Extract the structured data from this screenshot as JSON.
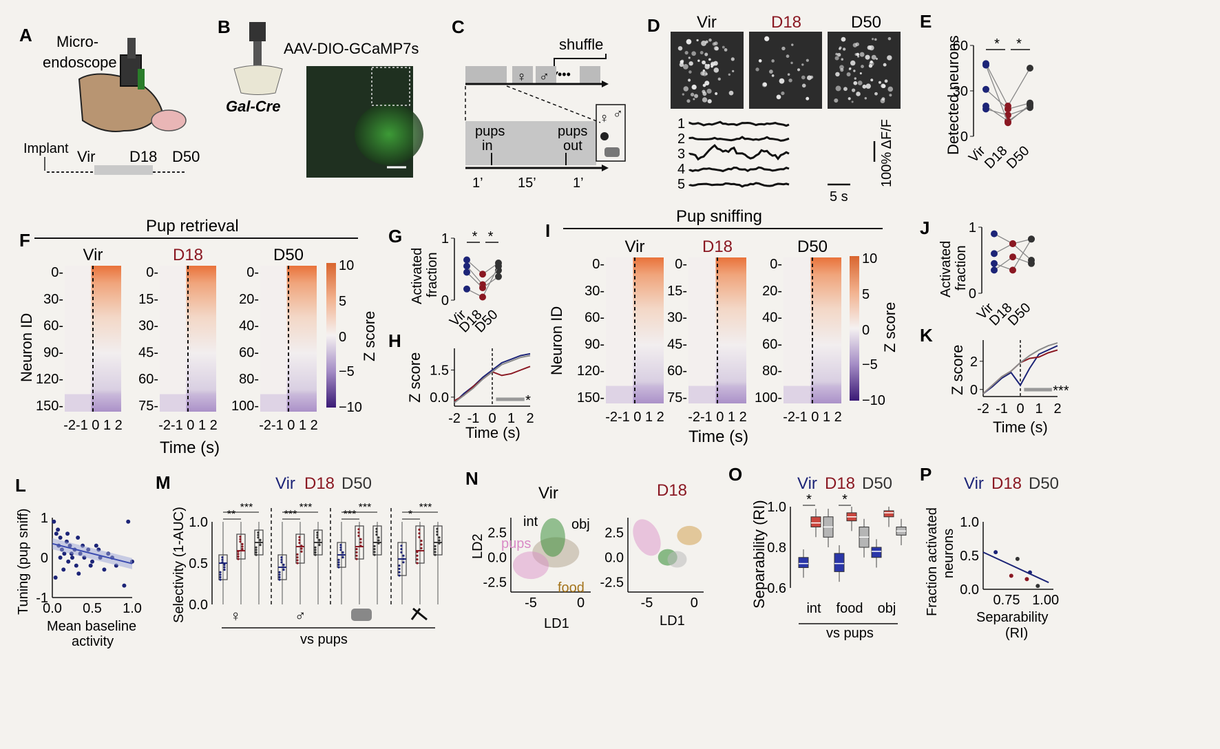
{
  "colors": {
    "vir": "#1c2477",
    "d18": "#8a1822",
    "d50": "#333333",
    "orange": "#e07a46",
    "purple": "#5b2f86",
    "green": "#2f8a2f",
    "pink": "#d98ac6",
    "food": "#d4a455",
    "paper": "#f4f2ee"
  },
  "panels": {
    "A": {
      "letter": "A",
      "label_micro": "Micro-",
      "label_endoscope": "endoscope",
      "implant": "Implant",
      "vir": "Vir",
      "d18": "D18",
      "d50": "D50"
    },
    "B": {
      "letter": "B",
      "virus": "AAV-DIO-GCaMP7s",
      "mouse_line": "Gal-Cre"
    },
    "C": {
      "letter": "C",
      "shuffle": "shuffle",
      "dots": "•••",
      "pups_in_1": "pups",
      "pups_in_2": "in",
      "pups_out_1": "pups",
      "pups_out_2": "out",
      "t1": "1’",
      "t2": "15’",
      "t3": "1’",
      "female": "♀",
      "male": "♂"
    },
    "D": {
      "letter": "D",
      "vir": "Vir",
      "d18": "D18",
      "d50": "D50",
      "trace_ids": [
        "1",
        "2",
        "3",
        "4",
        "5"
      ],
      "scale_y": "100% ΔF/F",
      "scale_x": "5 s"
    },
    "E": {
      "letter": "E",
      "ylabel": "Detected neurons",
      "yticks": [
        "60",
        "30",
        "0"
      ],
      "xticks": [
        "Vir",
        "D18",
        "D50"
      ],
      "sig": [
        "*",
        "*"
      ]
    },
    "F": {
      "letter": "F",
      "title": "Pup retrieval",
      "ylabel": "Neuron ID",
      "xlabel": "Time (s)",
      "cbar_label": "Z score",
      "cbar_ticks": [
        "10",
        "5",
        "0",
        "−5",
        "−10"
      ],
      "maps": [
        {
          "name": "Vir",
          "yticks": [
            "0-",
            "30-",
            "60-",
            "90-",
            "120-",
            "150-"
          ],
          "xticks": "-2-1 0 1 2"
        },
        {
          "name": "D18",
          "yticks": [
            "0-",
            "15-",
            "30-",
            "45-",
            "60-",
            "75-"
          ],
          "xticks": "-2-1 0 1 2"
        },
        {
          "name": "D50",
          "yticks": [
            "0-",
            "20-",
            "40-",
            "60-",
            "80-",
            "100-"
          ],
          "xticks": "-2-1 0 1 2"
        }
      ]
    },
    "G": {
      "letter": "G",
      "ylabel_1": "Activated",
      "ylabel_2": "fraction",
      "yticks": [
        "1",
        "0"
      ],
      "xticks": [
        "Vir",
        "D18",
        "D50"
      ],
      "sig": [
        "*",
        "*"
      ]
    },
    "H": {
      "letter": "H",
      "ylabel": "Z score",
      "xlabel": "Time (s)",
      "yticks": [
        "1.5",
        "0.0"
      ],
      "xticks": [
        "-2",
        "-1",
        "0",
        "1",
        "2"
      ],
      "sig": "*"
    },
    "I": {
      "letter": "I",
      "title": "Pup sniffing",
      "ylabel": "Neuron ID",
      "xlabel": "Time (s)",
      "cbar_label": "Z score",
      "cbar_ticks": [
        "10",
        "5",
        "0",
        "−5",
        "−10"
      ],
      "maps": [
        {
          "name": "Vir",
          "yticks": [
            "0-",
            "30-",
            "60-",
            "90-",
            "120-",
            "150-"
          ],
          "xticks": "-2-1 0 1 2"
        },
        {
          "name": "D18",
          "yticks": [
            "0-",
            "15-",
            "30-",
            "45-",
            "60-",
            "75-"
          ],
          "xticks": "-2-1 0 1 2"
        },
        {
          "name": "D50",
          "yticks": [
            "0-",
            "20-",
            "40-",
            "60-",
            "80-",
            "100-"
          ],
          "xticks": "-2-1 0 1 2"
        }
      ]
    },
    "J": {
      "letter": "J",
      "ylabel_1": "Activated",
      "ylabel_2": "fraction",
      "yticks": [
        "1",
        "0"
      ],
      "xticks": [
        "Vir",
        "D18",
        "D50"
      ]
    },
    "K": {
      "letter": "K",
      "ylabel": "Z score",
      "xlabel": "Time (s)",
      "yticks": [
        "2",
        "0"
      ],
      "xticks": [
        "-2",
        "-1",
        "0",
        "1",
        "2"
      ],
      "sig": "***"
    },
    "L": {
      "letter": "L",
      "ylabel": "Tuning (pup sniff)",
      "xlabel_1": "Mean baseline",
      "xlabel_2": "activity",
      "yticks": [
        "1",
        "0",
        "-1"
      ],
      "xticks": [
        "0.0",
        "0.5",
        "1.0"
      ]
    },
    "M": {
      "letter": "M",
      "ylabel": "Selectivity (1-AUC)",
      "xlabel": "vs pups",
      "yticks": [
        "1.0",
        "0.5",
        "0.0"
      ],
      "legend": [
        "Vir",
        "D18",
        "D50"
      ],
      "sig": [
        "**",
        "***",
        "***",
        "***",
        "***",
        "***",
        "*",
        "***"
      ],
      "icons": [
        "♀",
        "♂"
      ]
    },
    "N": {
      "letter": "N",
      "plots": [
        {
          "name": "Vir",
          "labels": [
            "int",
            "obj",
            "pups",
            "food"
          ]
        },
        {
          "name": "D18"
        }
      ],
      "xlabel": "LD1",
      "ylabel": "LD2",
      "yticks": [
        "2.5",
        "0.0",
        "-2.5"
      ],
      "xticks": [
        "-5",
        "0"
      ]
    },
    "O": {
      "letter": "O",
      "ylabel": "Separability (RI)",
      "legend": [
        "Vir",
        "D18",
        "D50"
      ],
      "yticks": [
        "1.0",
        "0.8",
        "0.6"
      ],
      "xticks": [
        "int",
        "food",
        "obj"
      ],
      "xlabel": "vs pups",
      "sig": [
        "*",
        "*"
      ]
    },
    "P": {
      "letter": "P",
      "legend": [
        "Vir",
        "D18",
        "D50"
      ],
      "ylabel_1": "Fraction activated",
      "ylabel_2": "neurons",
      "yticks": [
        "1.0",
        "0.5",
        "0.0"
      ],
      "xticks": [
        "0.75",
        "1.00"
      ],
      "xlabel_1": "Separability",
      "xlabel_2": "(RI)"
    }
  },
  "chart_data": [
    {
      "panel": "E",
      "type": "line",
      "categories": [
        "Vir",
        "D18",
        "D50"
      ],
      "ylabel": "Detected neurons",
      "ylim": [
        0,
        60
      ],
      "series": [
        {
          "values": [
            48,
            20,
            45
          ]
        },
        {
          "values": [
            31,
            18,
            22
          ]
        },
        {
          "values": [
            20,
            10,
            20
          ]
        },
        {
          "values": [
            18,
            14,
            19
          ]
        },
        {
          "values": [
            47,
            9,
            21
          ]
        }
      ]
    },
    {
      "panel": "G",
      "type": "line",
      "categories": [
        "Vir",
        "D18",
        "D50"
      ],
      "ylabel": "Activated fraction",
      "ylim": [
        0,
        1
      ],
      "series": [
        {
          "values": [
            0.65,
            0.42,
            0.6
          ]
        },
        {
          "values": [
            0.55,
            0.25,
            0.48
          ]
        },
        {
          "values": [
            0.45,
            0.2,
            0.38
          ]
        },
        {
          "values": [
            0.18,
            0.05,
            0.55
          ]
        }
      ]
    },
    {
      "panel": "H",
      "type": "line",
      "xlabel": "Time (s)",
      "ylabel": "Z score",
      "xlim": [
        -2,
        2
      ],
      "ylim": [
        -0.5,
        2.7
      ],
      "x": [
        -2,
        -1.5,
        -1,
        -0.5,
        0,
        0.5,
        1,
        1.5,
        2
      ],
      "series": [
        {
          "name": "Vir",
          "values": [
            -0.3,
            0.2,
            0.6,
            1.1,
            1.5,
            1.9,
            2.1,
            2.3,
            2.4
          ]
        },
        {
          "name": "D18",
          "values": [
            -0.2,
            0.1,
            0.6,
            1.0,
            1.4,
            1.2,
            1.3,
            1.5,
            1.7
          ]
        },
        {
          "name": "D50",
          "values": [
            -0.3,
            0.1,
            0.5,
            1.0,
            1.4,
            1.8,
            2.0,
            2.2,
            2.3
          ]
        }
      ]
    },
    {
      "panel": "J",
      "type": "line",
      "categories": [
        "Vir",
        "D18",
        "D50"
      ],
      "ylabel": "Activated fraction",
      "ylim": [
        0,
        1
      ],
      "series": [
        {
          "values": [
            0.9,
            0.75,
            0.82
          ]
        },
        {
          "values": [
            0.6,
            0.75,
            0.5
          ]
        },
        {
          "values": [
            0.45,
            0.35,
            0.82
          ]
        },
        {
          "values": [
            0.35,
            0.55,
            0.45
          ]
        }
      ]
    },
    {
      "panel": "K",
      "type": "line",
      "xlabel": "Time (s)",
      "ylabel": "Z score",
      "xlim": [
        -2,
        2
      ],
      "ylim": [
        -0.5,
        3.5
      ],
      "x": [
        -2,
        -1.5,
        -1,
        -0.5,
        0,
        0.5,
        1,
        1.5,
        2
      ],
      "series": [
        {
          "name": "Vir",
          "values": [
            -0.3,
            0.2,
            0.8,
            1.2,
            0.3,
            1.5,
            2.5,
            2.8,
            3.1
          ]
        },
        {
          "name": "D18",
          "values": [
            -0.3,
            0.3,
            0.9,
            1.3,
            1.9,
            2.2,
            2.3,
            2.6,
            2.8
          ]
        },
        {
          "name": "D50",
          "values": [
            -0.3,
            0.3,
            0.9,
            1.3,
            1.9,
            2.4,
            2.8,
            3.1,
            3.3
          ]
        }
      ]
    },
    {
      "panel": "L",
      "type": "scatter",
      "xlabel": "Mean baseline activity",
      "ylabel": "Tuning (pup sniff)",
      "xlim": [
        0,
        1
      ],
      "ylim": [
        -1,
        1
      ],
      "x": [
        0.02,
        0.05,
        0.08,
        0.1,
        0.12,
        0.15,
        0.18,
        0.2,
        0.22,
        0.25,
        0.28,
        0.3,
        0.32,
        0.35,
        0.4,
        0.45,
        0.5,
        0.55,
        0.6,
        0.65,
        0.7,
        0.8,
        0.9,
        0.95,
        1.0,
        0.04,
        0.07,
        0.1,
        0.14,
        0.19,
        0.24,
        0.33,
        0.38,
        0.48,
        0.58,
        0.75
      ],
      "y": [
        0.9,
        0.6,
        0.3,
        0.5,
        0.2,
        0.1,
        0.4,
        -0.1,
        0.3,
        0.0,
        0.2,
        -0.2,
        0.5,
        0.1,
        0.0,
        0.2,
        -0.1,
        0.3,
        0.0,
        -0.3,
        0.1,
        -0.2,
        -0.7,
        0.9,
        -0.1,
        -0.5,
        0.7,
        0.0,
        -0.3,
        0.6,
        0.1,
        -0.4,
        0.3,
        -0.2,
        0.2,
        0.0
      ],
      "fit": {
        "x": [
          0,
          1
        ],
        "y": [
          0.35,
          -0.15
        ]
      }
    },
    {
      "panel": "M",
      "type": "bar",
      "ylabel": "Selectivity (1-AUC)",
      "ylim": [
        0,
        1
      ],
      "categories": [
        "♀",
        "♂",
        "food",
        "object"
      ],
      "series": [
        {
          "name": "Vir",
          "median": [
            0.5,
            0.45,
            0.6,
            0.55
          ],
          "q1": [
            0.3,
            0.3,
            0.45,
            0.35
          ],
          "q3": [
            0.6,
            0.6,
            0.75,
            0.75
          ]
        },
        {
          "name": "D18",
          "median": [
            0.65,
            0.7,
            0.7,
            0.65
          ],
          "q1": [
            0.55,
            0.5,
            0.55,
            0.5
          ],
          "q3": [
            0.85,
            0.85,
            0.95,
            0.95
          ]
        },
        {
          "name": "D50",
          "median": [
            0.75,
            0.75,
            0.75,
            0.75
          ],
          "q1": [
            0.6,
            0.6,
            0.6,
            0.6
          ],
          "q3": [
            0.9,
            0.9,
            0.95,
            0.95
          ]
        }
      ]
    },
    {
      "panel": "N",
      "type": "scatter",
      "xlabel": "LD1",
      "ylabel": "LD2",
      "xlim": [
        -7,
        1
      ],
      "ylim": [
        -3.5,
        4
      ],
      "series": [
        {
          "name": "int",
          "values": [
            [
              -3,
              2.5
            ]
          ]
        },
        {
          "name": "obj",
          "values": [
            [
              -2,
              1.8
            ]
          ]
        },
        {
          "name": "pups",
          "values": [
            [
              -5,
              -0.5
            ]
          ]
        },
        {
          "name": "food",
          "values": [
            [
              -1,
              -2
            ]
          ]
        }
      ]
    },
    {
      "panel": "O",
      "type": "bar",
      "ylabel": "Separability (RI)",
      "ylim": [
        0.6,
        1.0
      ],
      "categories": [
        "int",
        "food",
        "obj"
      ],
      "series": [
        {
          "name": "Vir",
          "median": [
            0.72,
            0.72,
            0.78
          ],
          "q1": [
            0.7,
            0.68,
            0.75
          ],
          "q3": [
            0.75,
            0.77,
            0.8
          ]
        },
        {
          "name": "D18",
          "median": [
            0.92,
            0.95,
            0.97
          ],
          "q1": [
            0.9,
            0.93,
            0.95
          ],
          "q3": [
            0.95,
            0.97,
            0.98
          ]
        },
        {
          "name": "D50",
          "median": [
            0.9,
            0.85,
            0.88
          ],
          "q1": [
            0.85,
            0.8,
            0.86
          ],
          "q3": [
            0.95,
            0.9,
            0.9
          ]
        }
      ]
    },
    {
      "panel": "P",
      "type": "scatter",
      "xlabel": "Separability (RI)",
      "ylabel": "Fraction activated neurons",
      "xlim": [
        0.6,
        1.05
      ],
      "ylim": [
        0,
        1
      ],
      "x": [
        0.68,
        0.78,
        0.82,
        0.88,
        0.9,
        0.95
      ],
      "y": [
        0.55,
        0.2,
        0.45,
        0.15,
        0.25,
        0.05
      ],
      "fit": {
        "x": [
          0.6,
          1.02
        ],
        "y": [
          0.55,
          0.1
        ]
      }
    }
  ]
}
